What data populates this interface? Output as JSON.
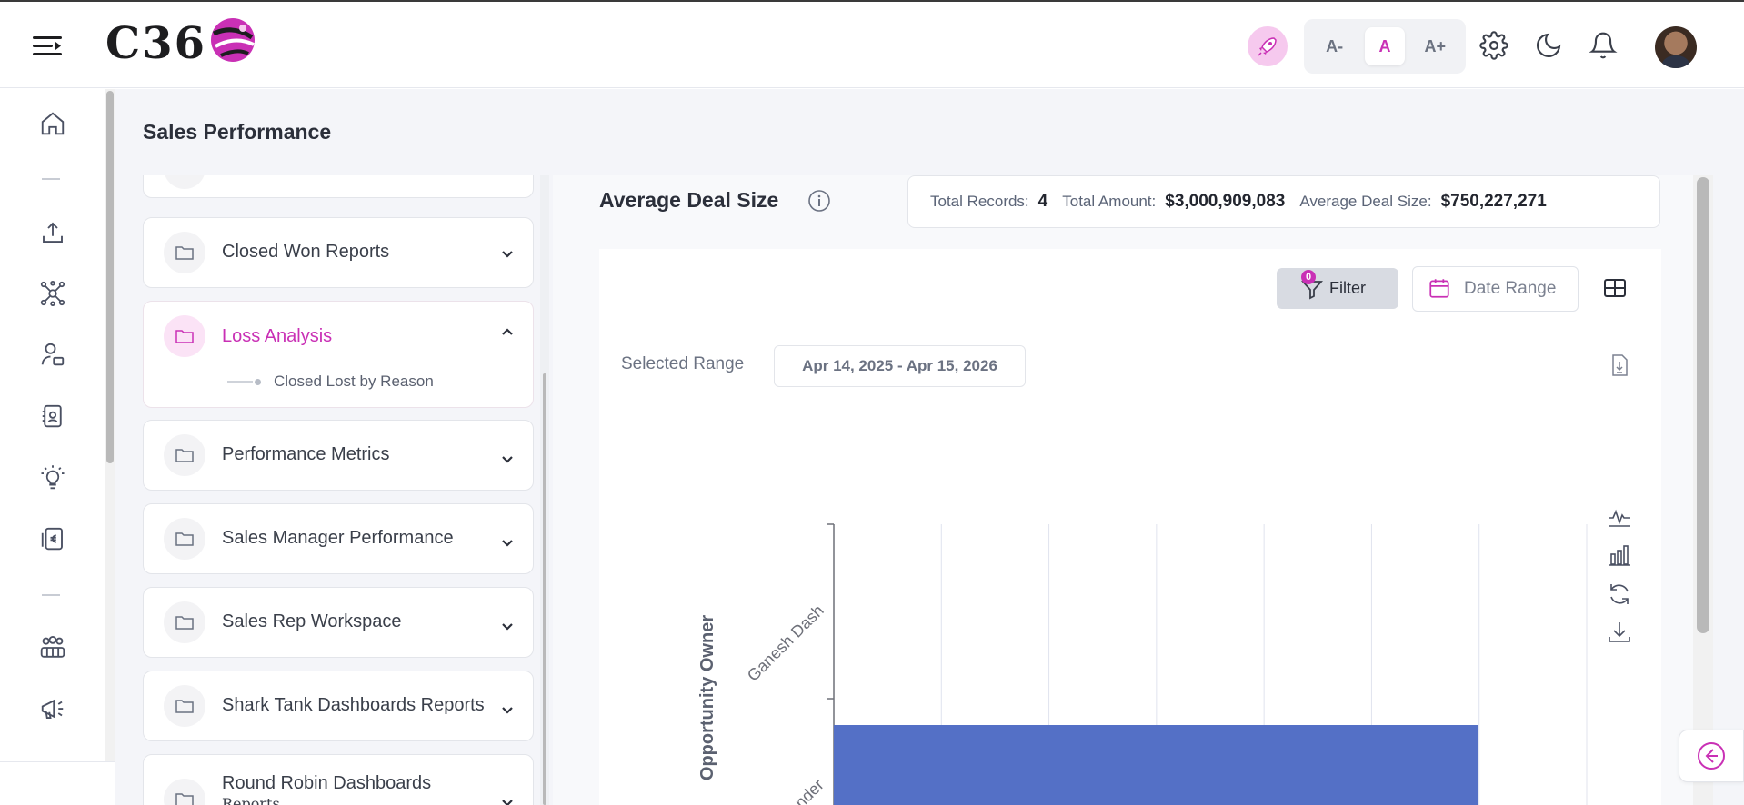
{
  "app": {
    "logo_text": "C36",
    "font_small": "A-",
    "font_normal": "A",
    "font_large": "A+"
  },
  "page": {
    "title": "Sales Performance"
  },
  "folders": [
    {
      "label": "Closed Won Reports",
      "expanded": false
    },
    {
      "label": "Loss Analysis",
      "expanded": true,
      "children": [
        "Closed Lost by Reason"
      ]
    },
    {
      "label": "Performance Metrics",
      "expanded": false
    },
    {
      "label": "Sales Manager Performance",
      "expanded": false
    },
    {
      "label": "Sales Rep Workspace",
      "expanded": false
    },
    {
      "label": "Shark Tank Dashboards Reports",
      "expanded": false
    },
    {
      "label": "Round Robin Dashboards",
      "label_line2": "Reports",
      "expanded": false
    }
  ],
  "report": {
    "title": "Average Deal Size",
    "stats": {
      "total_records_label": "Total Records:",
      "total_records_value": "4",
      "total_amount_label": "Total Amount:",
      "total_amount_value": "$3,000,909,083",
      "avg_label": "Average Deal Size:",
      "avg_value": "$750,227,271"
    },
    "filter_label": "Filter",
    "filter_count": "0",
    "date_range_label": "Date Range",
    "selected_range_label": "Selected Range",
    "selected_range_value": "Apr 14, 2025 - Apr 15, 2026"
  },
  "chart_data": {
    "type": "bar",
    "orientation": "horizontal",
    "ylabel": "Opportunity Owner",
    "categories": [
      "Ganesh Dash",
      "...nder"
    ],
    "values": [
      0,
      1
    ],
    "visible_partial": true,
    "colors": {
      "bar": "#5470c6",
      "grid": "#e0e3ee"
    }
  },
  "colors": {
    "accent": "#c930b5",
    "bar": "#5470c6"
  }
}
